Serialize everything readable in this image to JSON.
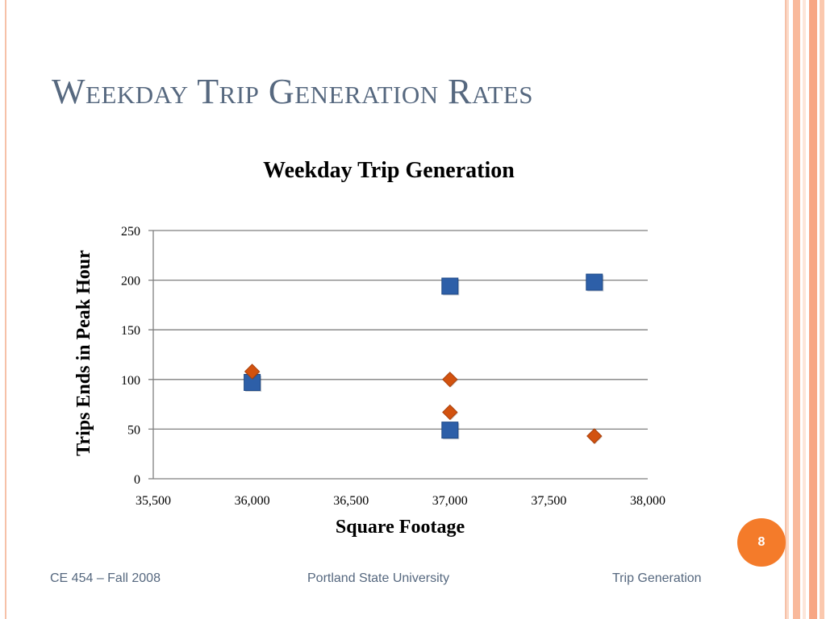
{
  "slide": {
    "title": "Weekday Trip Generation Rates",
    "page_number": "8",
    "footer": {
      "left": "CE 454 – Fall 2008",
      "center": "Portland State University",
      "right": "Trip Generation"
    }
  },
  "colors": {
    "title": "#56687f",
    "accent": "#f47b2a",
    "series_square": "#2d5fa8",
    "series_diamond": "#d2520f",
    "gridline": "#7f7f7f",
    "frame": "#f6c1a8"
  },
  "chart_data": {
    "type": "scatter",
    "title": "Weekday Trip Generation",
    "xlabel": "Square Footage",
    "ylabel": "Trips Ends in Peak Hour",
    "xlim": [
      35500,
      38000
    ],
    "ylim": [
      0,
      250
    ],
    "xticks": [
      35500,
      36000,
      36500,
      37000,
      37500,
      38000
    ],
    "yticks": [
      0,
      50,
      100,
      150,
      200,
      250
    ],
    "xtick_labels": [
      "35,500",
      "36,000",
      "36,500",
      "37,000",
      "37,500",
      "38,000"
    ],
    "ytick_labels": [
      "0",
      "50",
      "100",
      "150",
      "200",
      "250"
    ],
    "grid": "horizontal",
    "legend": "none",
    "series": [
      {
        "marker": "square",
        "color": "#2d5fa8",
        "points": [
          {
            "x": 36000,
            "y": 97
          },
          {
            "x": 37000,
            "y": 194
          },
          {
            "x": 37000,
            "y": 49
          },
          {
            "x": 37730,
            "y": 198
          }
        ]
      },
      {
        "marker": "diamond",
        "color": "#d2520f",
        "points": [
          {
            "x": 36000,
            "y": 108
          },
          {
            "x": 37000,
            "y": 100
          },
          {
            "x": 37000,
            "y": 67
          },
          {
            "x": 37730,
            "y": 43
          }
        ]
      }
    ]
  }
}
